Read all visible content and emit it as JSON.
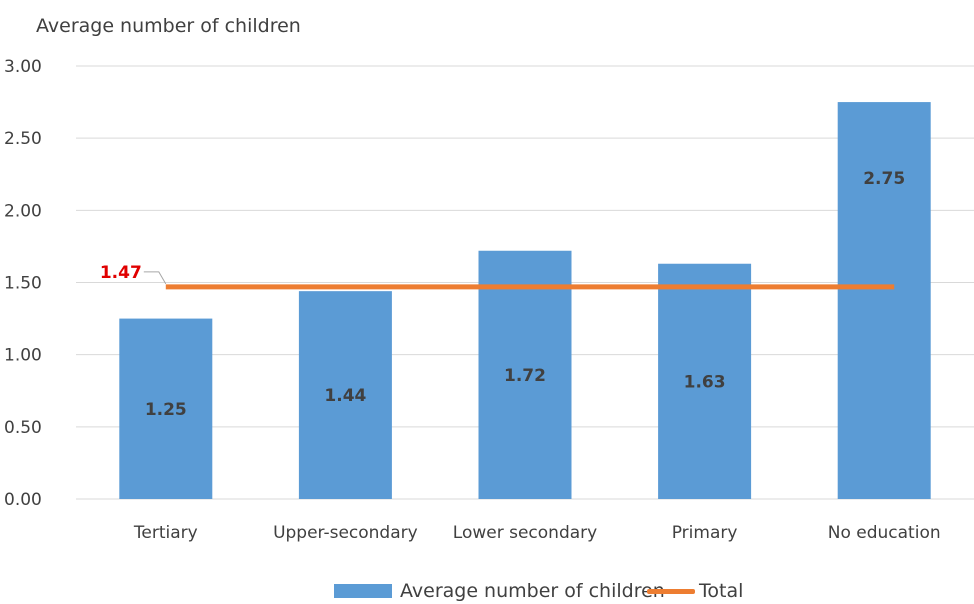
{
  "chart_data": {
    "type": "bar",
    "ylabel": "Average number of children",
    "categories": [
      "Tertiary",
      "Upper-secondary",
      "Lower secondary",
      "Primary",
      "No education"
    ],
    "series": [
      {
        "name": "Average number of children",
        "type": "bar",
        "color": "#5b9bd5",
        "values": [
          1.25,
          1.44,
          1.72,
          1.63,
          2.75
        ],
        "labels": [
          "1.25",
          "1.44",
          "1.72",
          "1.63",
          "2.75"
        ]
      },
      {
        "name": "Total",
        "type": "line",
        "color": "#ed7d31",
        "value": 1.47,
        "label": "1.47",
        "label_color": "#e00000"
      }
    ],
    "ylim": [
      0,
      3
    ],
    "yticks": [
      "0.00",
      "0.50",
      "1.00",
      "1.50",
      "2.00",
      "2.50",
      "3.00"
    ],
    "grid": true,
    "legend": "bottom"
  }
}
